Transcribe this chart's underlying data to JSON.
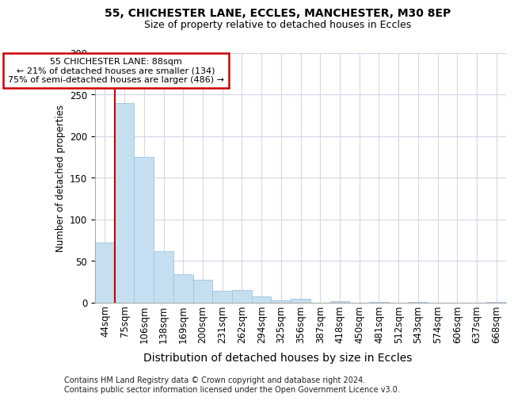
{
  "title1": "55, CHICHESTER LANE, ECCLES, MANCHESTER, M30 8EP",
  "title2": "Size of property relative to detached houses in Eccles",
  "xlabel": "Distribution of detached houses by size in Eccles",
  "ylabel": "Number of detached properties",
  "footer": "Contains HM Land Registry data © Crown copyright and database right 2024.\nContains public sector information licensed under the Open Government Licence v3.0.",
  "bin_labels": [
    "44sqm",
    "75sqm",
    "106sqm",
    "138sqm",
    "169sqm",
    "200sqm",
    "231sqm",
    "262sqm",
    "294sqm",
    "325sqm",
    "356sqm",
    "387sqm",
    "418sqm",
    "450sqm",
    "481sqm",
    "512sqm",
    "543sqm",
    "574sqm",
    "606sqm",
    "637sqm",
    "668sqm"
  ],
  "bar_values": [
    72,
    240,
    175,
    62,
    34,
    28,
    14,
    15,
    8,
    3,
    5,
    0,
    2,
    0,
    1,
    0,
    1,
    0,
    0,
    0,
    1
  ],
  "bar_color": "#c5dff0",
  "bar_edge_color": "#a0c4e0",
  "red_line_bin": 1,
  "annotation_text": "55 CHICHESTER LANE: 88sqm\n← 21% of detached houses are smaller (134)\n75% of semi-detached houses are larger (486) →",
  "annotation_box_color": "#ffffff",
  "annotation_box_edge": "#cc0000",
  "ylim": [
    0,
    300
  ],
  "yticks": [
    0,
    50,
    100,
    150,
    200,
    250,
    300
  ],
  "background_color": "#ffffff",
  "plot_background": "#ffffff",
  "grid_color": "#d0d8e8",
  "title1_fontsize": 10,
  "title2_fontsize": 9,
  "xlabel_fontsize": 10,
  "ylabel_fontsize": 8.5,
  "tick_fontsize": 8.5,
  "footer_fontsize": 7
}
